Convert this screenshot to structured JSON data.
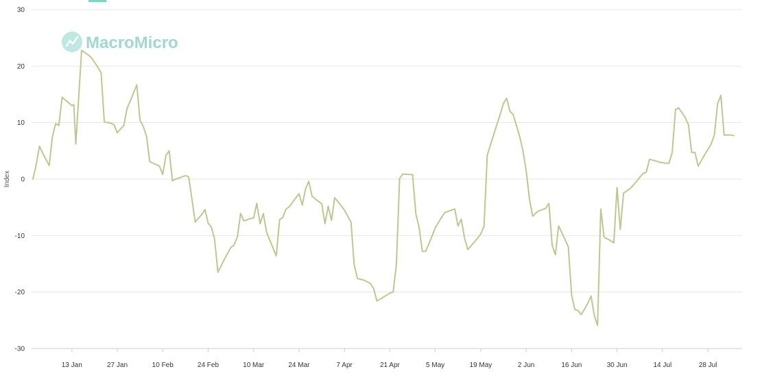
{
  "watermark": {
    "text": "MacroMicro",
    "icon": "macromicro-logo-icon"
  },
  "colors": {
    "series": "#bfc78f",
    "zero_line": "#c81e1e",
    "grid": "#e6e6e6",
    "teal": "#7fd3c7"
  },
  "chart_data": {
    "type": "line",
    "title": "",
    "xlabel": "",
    "ylabel": "Index",
    "ylim": [
      -30,
      30
    ],
    "y_ticks": [
      30,
      20,
      10,
      0,
      -10,
      -20,
      -30
    ],
    "x_range": [
      1,
      213
    ],
    "x_tick_positions": [
      13,
      27,
      41,
      55,
      69,
      83,
      97,
      111,
      125,
      139,
      153,
      167,
      181,
      195,
      209
    ],
    "x_tick_labels": [
      "13 Jan",
      "27 Jan",
      "10 Feb",
      "24 Feb",
      "10 Mar",
      "24 Mar",
      "7 Apr",
      "21 Apr",
      "5 May",
      "19 May",
      "2 Jun",
      "16 Jun",
      "30 Jun",
      "14 Jul",
      "28 Jul"
    ],
    "grid": true,
    "reference_line": {
      "y": 0
    },
    "series": [
      {
        "values": [
          [
            1,
            0
          ],
          [
            2,
            2.5
          ],
          [
            3,
            5.8
          ],
          [
            4,
            4.6
          ],
          [
            6,
            2.4
          ],
          [
            7,
            7.5
          ],
          [
            8,
            9.8
          ],
          [
            9,
            9.5
          ],
          [
            10,
            14.5
          ],
          [
            12,
            13.5
          ],
          [
            13,
            13
          ],
          [
            13.6,
            13.2
          ],
          [
            14.2,
            6.2
          ],
          [
            16,
            22.8
          ],
          [
            18,
            22
          ],
          [
            19,
            21.5
          ],
          [
            21,
            19.8
          ],
          [
            22,
            18.8
          ],
          [
            23,
            10.1
          ],
          [
            25,
            9.9
          ],
          [
            26,
            9.6
          ],
          [
            27,
            8.2
          ],
          [
            29,
            9.5
          ],
          [
            30,
            12.5
          ],
          [
            31,
            13.8
          ],
          [
            33,
            16.7
          ],
          [
            34,
            10.4
          ],
          [
            35,
            9.3
          ],
          [
            36,
            7.6
          ],
          [
            37,
            3.1
          ],
          [
            38,
            2.8
          ],
          [
            40,
            2.3
          ],
          [
            41,
            0.8
          ],
          [
            42,
            4.2
          ],
          [
            43,
            5
          ],
          [
            44,
            -0.3
          ],
          [
            45,
            0
          ],
          [
            46,
            0.2
          ],
          [
            47,
            0.4
          ],
          [
            48,
            0.6
          ],
          [
            49,
            0.4
          ],
          [
            51,
            -7.6
          ],
          [
            53,
            -6.3
          ],
          [
            54,
            -5.4
          ],
          [
            55,
            -7.8
          ],
          [
            56,
            -8.5
          ],
          [
            57,
            -10.7
          ],
          [
            58,
            -16.5
          ],
          [
            60,
            -14.2
          ],
          [
            62,
            -12.1
          ],
          [
            63,
            -11.7
          ],
          [
            64,
            -10.2
          ],
          [
            65,
            -6.1
          ],
          [
            66,
            -7.4
          ],
          [
            67,
            -7.2
          ],
          [
            68,
            -7
          ],
          [
            69,
            -6.9
          ],
          [
            70,
            -4.3
          ],
          [
            71,
            -7.9
          ],
          [
            72,
            -6.1
          ],
          [
            73,
            -9.4
          ],
          [
            76,
            -13.6
          ],
          [
            77,
            -7.2
          ],
          [
            78,
            -6.8
          ],
          [
            79,
            -5.3
          ],
          [
            80,
            -4.9
          ],
          [
            81,
            -4.1
          ],
          [
            83,
            -2.6
          ],
          [
            84,
            -4.6
          ],
          [
            85,
            -1.8
          ],
          [
            86,
            -0.4
          ],
          [
            87,
            -3
          ],
          [
            88,
            -3.5
          ],
          [
            90,
            -4.4
          ],
          [
            91,
            -7.9
          ],
          [
            92,
            -4.8
          ],
          [
            93,
            -7.3
          ],
          [
            94,
            -3.3
          ],
          [
            95,
            -4
          ],
          [
            97,
            -5.5
          ],
          [
            99,
            -7.6
          ],
          [
            100,
            -15.2
          ],
          [
            101,
            -17.6
          ],
          [
            103,
            -17.9
          ],
          [
            105,
            -18.5
          ],
          [
            106,
            -19.4
          ],
          [
            107,
            -21.6
          ],
          [
            109,
            -20.9
          ],
          [
            111,
            -20.2
          ],
          [
            112,
            -20
          ],
          [
            113,
            -15.1
          ],
          [
            114,
            0.1
          ],
          [
            115,
            0.9
          ],
          [
            117,
            0.8
          ],
          [
            118,
            0.8
          ],
          [
            119,
            -6.2
          ],
          [
            120,
            -8.5
          ],
          [
            121,
            -12.8
          ],
          [
            122,
            -12.8
          ],
          [
            123,
            -11.5
          ],
          [
            125,
            -8.6
          ],
          [
            127,
            -6.7
          ],
          [
            128,
            -5.9
          ],
          [
            130,
            -5.5
          ],
          [
            131,
            -5.3
          ],
          [
            132,
            -8.3
          ],
          [
            133,
            -7.1
          ],
          [
            134,
            -10.4
          ],
          [
            135,
            -12.5
          ],
          [
            138,
            -10.5
          ],
          [
            139,
            -9.7
          ],
          [
            140,
            -8.4
          ],
          [
            141,
            4.2
          ],
          [
            143,
            7.9
          ],
          [
            145,
            11.5
          ],
          [
            146,
            13.4
          ],
          [
            147,
            14.3
          ],
          [
            148,
            12
          ],
          [
            149,
            11.4
          ],
          [
            151,
            7.5
          ],
          [
            152,
            5
          ],
          [
            153,
            1.5
          ],
          [
            154,
            -3.5
          ],
          [
            155,
            -6.6
          ],
          [
            156,
            -6
          ],
          [
            157,
            -5.6
          ],
          [
            159,
            -5.2
          ],
          [
            160,
            -4.3
          ],
          [
            161,
            -11.7
          ],
          [
            162,
            -13.4
          ],
          [
            163,
            -8.3
          ],
          [
            164,
            -9.5
          ],
          [
            166,
            -12
          ],
          [
            167,
            -20.6
          ],
          [
            168,
            -23.1
          ],
          [
            169,
            -23.3
          ],
          [
            170,
            -24
          ],
          [
            172,
            -22
          ],
          [
            173,
            -20.7
          ],
          [
            174,
            -24.2
          ],
          [
            175,
            -25.9
          ],
          [
            176,
            -5.3
          ],
          [
            177,
            -10.3
          ],
          [
            179,
            -10.9
          ],
          [
            180,
            -11.3
          ],
          [
            181,
            -1.5
          ],
          [
            182,
            -8.9
          ],
          [
            183,
            -2.5
          ],
          [
            185,
            -1.7
          ],
          [
            186,
            -1.1
          ],
          [
            188,
            0.3
          ],
          [
            189,
            1
          ],
          [
            190,
            1.2
          ],
          [
            191,
            3.5
          ],
          [
            193,
            3.2
          ],
          [
            194,
            3
          ],
          [
            196,
            2.8
          ],
          [
            197,
            2.8
          ],
          [
            198,
            4.7
          ],
          [
            199,
            12.3
          ],
          [
            200,
            12.6
          ],
          [
            202,
            10.9
          ],
          [
            203,
            9.6
          ],
          [
            204,
            4.7
          ],
          [
            205,
            4.7
          ],
          [
            206,
            2.3
          ],
          [
            208,
            4.3
          ],
          [
            210,
            6.2
          ],
          [
            211,
            7.8
          ],
          [
            212,
            13.4
          ],
          [
            213,
            14.8
          ],
          [
            214,
            7.8
          ],
          [
            216,
            7.8
          ],
          [
            217,
            7.7
          ]
        ]
      }
    ]
  }
}
